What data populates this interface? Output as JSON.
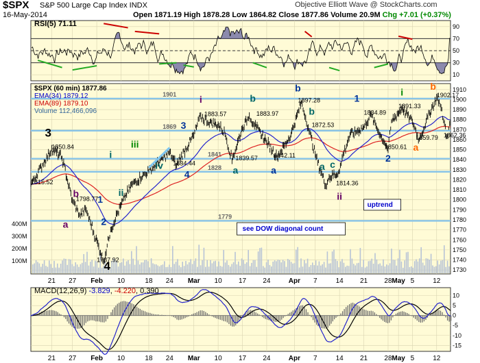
{
  "header": {
    "ticker": "$SPX",
    "description": "S&P 500 Large Cap Index INDX",
    "brand": "Objective Elliott Wave @ StockCharts.com",
    "date": "16-May-2014",
    "open": "Open 1871.19",
    "high": "High 1878.28",
    "low": "Low 1864.82",
    "close": "Close 1877.86",
    "volume": "Volume 20.9M",
    "change": "Chg +7.01 (+0.37%)",
    "change_color": "#008800"
  },
  "legend": {
    "spx": "$SPX (60 min) 1877.86",
    "ema34": "EMA(34) 1879.12",
    "ema89": "EMA(89) 1879.10",
    "volume": "Volume 112,466,096",
    "rsi": "RSI(5) 71.11",
    "macd_title": "MACD(12,26,9)",
    "macd_value": "-3.829",
    "macd_signal": "-4.220",
    "macd_hist": "0.390"
  },
  "chart_data": [
    {
      "type": "line",
      "panel": "rsi",
      "series": [
        {
          "name": "RSI(5)",
          "last": 71.11
        }
      ],
      "y_ticks": [
        10,
        30,
        50,
        70,
        90
      ],
      "ylim": [
        0,
        100
      ],
      "reference_lines": [
        30,
        50,
        70
      ]
    },
    {
      "type": "line",
      "panel": "price",
      "x_tick_labels": [
        "21",
        "27",
        "Feb",
        "10",
        "18",
        "24",
        "Mar",
        "10",
        "17",
        "24",
        "Apr",
        "7",
        "14",
        "21",
        "28",
        "May",
        "5",
        "12"
      ],
      "y_ticks": [
        1730,
        1740,
        1750,
        1760,
        1770,
        1780,
        1790,
        1800,
        1810,
        1820,
        1830,
        1840,
        1850,
        1860,
        1870,
        1880,
        1890,
        1900,
        1910
      ],
      "ylim": [
        1726,
        1916
      ],
      "volume_ticks": [
        "100M",
        "200M",
        "300M",
        "400M"
      ],
      "grid": true,
      "horizontal_levels": [
        {
          "value": 1901,
          "label": "1901"
        },
        {
          "value": 1869,
          "label": "1869"
        },
        {
          "value": 1841,
          "label": "1841"
        },
        {
          "value": 1828,
          "label": "1828"
        },
        {
          "value": 1779,
          "label": "1779"
        }
      ],
      "series": [
        {
          "name": "$SPX (60 min)",
          "x": [
            "Jan 15",
            "Jan 21",
            "Jan 24",
            "Jan 27",
            "Jan 29",
            "Jan 31",
            "Feb 5",
            "Feb 7",
            "Feb 10",
            "Feb 13",
            "Feb 18",
            "Feb 20",
            "Feb 24",
            "Feb 26",
            "Mar 3",
            "Mar 5",
            "Mar 7",
            "Mar 10",
            "Mar 12",
            "Mar 14",
            "Mar 17",
            "Mar 19",
            "Mar 21",
            "Mar 24",
            "Mar 27",
            "Mar 31",
            "Apr 3",
            "Apr 5",
            "Apr 7",
            "Apr 10",
            "Apr 11",
            "Apr 14",
            "Apr 15",
            "Apr 17",
            "Apr 21",
            "Apr 23",
            "Apr 25",
            "Apr 28",
            "Apr 29",
            "May 2",
            "May 5",
            "May 7",
            "May 9",
            "May 12",
            "May 13",
            "May 14",
            "May 15",
            "May 16"
          ],
          "values": [
            1815.52,
            1850.84,
            1842,
            1798.77,
            1785,
            1790,
            1737.92,
            1770,
            1795,
            1815,
            1829,
            1835,
            1847,
            1834.44,
            1865,
            1883.57,
            1878,
            1875,
            1866,
            1839.57,
            1872,
            1883.97,
            1872,
            1858,
            1842.11,
            1865,
            1897.28,
            1872.53,
            1845,
            1814.36,
            1822,
            1828,
            1845,
            1865,
            1872,
            1884.89,
            1870,
            1850.61,
            1878,
            1891.33,
            1878,
            1859.79,
            1878,
            1902.17,
            1895,
            1880,
            1862.36,
            1877.86
          ]
        },
        {
          "name": "EMA(34)",
          "last": 1879.12
        },
        {
          "name": "EMA(89)",
          "last": 1879.1
        }
      ],
      "annotations": [
        {
          "text": "3",
          "color": "#000000",
          "x": "Jan 20",
          "y": 1863
        },
        {
          "text": "1850.84",
          "x": "Jan 21",
          "y": 1850.84
        },
        {
          "text": "1815.52",
          "x": "Jan 15",
          "y": 1815.52
        },
        {
          "text": "b",
          "color": "#660066",
          "x": "Jan 28",
          "y": 1803
        },
        {
          "text": "1798.77",
          "x": "Jan 28",
          "y": 1798.77
        },
        {
          "text": "a",
          "color": "#660066",
          "x": "Jan 25",
          "y": 1772
        },
        {
          "text": "1",
          "color": "#003399",
          "x": "Feb 4",
          "y": 1797
        },
        {
          "text": "2",
          "color": "#003399",
          "x": "Feb 5",
          "y": 1775
        },
        {
          "text": "1737.92",
          "x": "Feb 3",
          "y": 1737.92
        },
        {
          "text": "4",
          "color": "#000000",
          "x": "Feb 6",
          "y": 1730
        },
        {
          "text": "i",
          "color": "#006666",
          "x": "Feb 7",
          "y": 1842
        },
        {
          "text": "ii",
          "color": "#006666",
          "x": "Feb 10",
          "y": 1804
        },
        {
          "text": "iii",
          "color": "#008800",
          "x": "Feb 14",
          "y": 1852
        },
        {
          "text": "iv",
          "color": "#006666",
          "x": "Feb 21",
          "y": 1831
        },
        {
          "text": "1834.44",
          "x": "Feb 25",
          "y": 1834.44
        },
        {
          "text": "3",
          "color": "#003399",
          "x": "Feb 28",
          "y": 1871
        },
        {
          "text": "4",
          "color": "#003399",
          "x": "Mar 1",
          "y": 1822
        },
        {
          "text": "i",
          "color": "#660066",
          "x": "Mar 5",
          "y": 1897
        },
        {
          "text": "1883.57",
          "x": "Mar 6",
          "y": 1883.57
        },
        {
          "text": "a",
          "color": "#006666",
          "x": "Mar 15",
          "y": 1826
        },
        {
          "text": "1839.57",
          "x": "Mar 15",
          "y": 1839.57
        },
        {
          "text": "b",
          "color": "#006666",
          "x": "Mar 20",
          "y": 1898
        },
        {
          "text": "1883.97",
          "x": "Mar 21",
          "y": 1883.97
        },
        {
          "text": "a",
          "color": "#003399",
          "x": "Mar 26",
          "y": 1826
        },
        {
          "text": "1842.11",
          "x": "Mar 26",
          "y": 1842.11
        },
        {
          "text": "b",
          "color": "#003399",
          "x": "Apr 2",
          "y": 1908
        },
        {
          "text": "1897.28",
          "x": "Apr 2",
          "y": 1897.28
        },
        {
          "text": "b",
          "color": "#006666",
          "x": "Apr 6",
          "y": 1885
        },
        {
          "text": "1872.53",
          "x": "Apr 6",
          "y": 1872.53
        },
        {
          "text": "a",
          "color": "#006666",
          "x": "Apr 9",
          "y": 1830
        },
        {
          "text": "c",
          "color": "#006666",
          "x": "Apr 12",
          "y": 1832
        },
        {
          "text": "1814.36",
          "x": "Apr 13",
          "y": 1814.36
        },
        {
          "text": "ii",
          "color": "#660066",
          "x": "Apr 14",
          "y": 1800
        },
        {
          "text": "1",
          "color": "#003399",
          "x": "Apr 19",
          "y": 1898
        },
        {
          "text": "1884.89",
          "x": "Apr 21",
          "y": 1884.89
        },
        {
          "text": "1850.61",
          "x": "Apr 27",
          "y": 1850.61
        },
        {
          "text": "2",
          "color": "#003399",
          "x": "Apr 28",
          "y": 1838
        },
        {
          "text": "i",
          "color": "#008800",
          "x": "May 2",
          "y": 1904
        },
        {
          "text": "1891.33",
          "x": "May 1",
          "y": 1891.33
        },
        {
          "text": "1859.79",
          "x": "May 6",
          "y": 1859.79
        },
        {
          "text": "a",
          "color": "#ff6600",
          "x": "May 6",
          "y": 1849
        },
        {
          "text": "b",
          "color": "#ff6600",
          "x": "May 11",
          "y": 1910
        },
        {
          "text": "1902.17",
          "x": "May 12",
          "y": 1902.17
        },
        {
          "text": "1862.36",
          "x": "May 14",
          "y": 1862.36
        },
        {
          "text": "uptrend",
          "color": "#0000cc",
          "x": "Apr 22",
          "y": 1793
        },
        {
          "text": "see DOW diagonal count",
          "color": "#0000cc",
          "x": "Mar 17",
          "y": 1769
        }
      ]
    },
    {
      "type": "line",
      "panel": "macd",
      "x_tick_labels": [
        "21",
        "27",
        "Feb",
        "10",
        "18",
        "24",
        "Mar",
        "10",
        "17",
        "24",
        "Apr",
        "7",
        "14",
        "21",
        "28",
        "May",
        "5",
        "12"
      ],
      "y_ticks": [
        -15,
        -10,
        -5,
        0,
        5,
        10
      ],
      "ylim": [
        -18,
        14
      ],
      "series": [
        {
          "name": "MACD(12,26,9)",
          "last": -3.829
        },
        {
          "name": "Signal",
          "last": -4.22
        },
        {
          "name": "Histogram",
          "last": 0.39
        }
      ]
    }
  ]
}
